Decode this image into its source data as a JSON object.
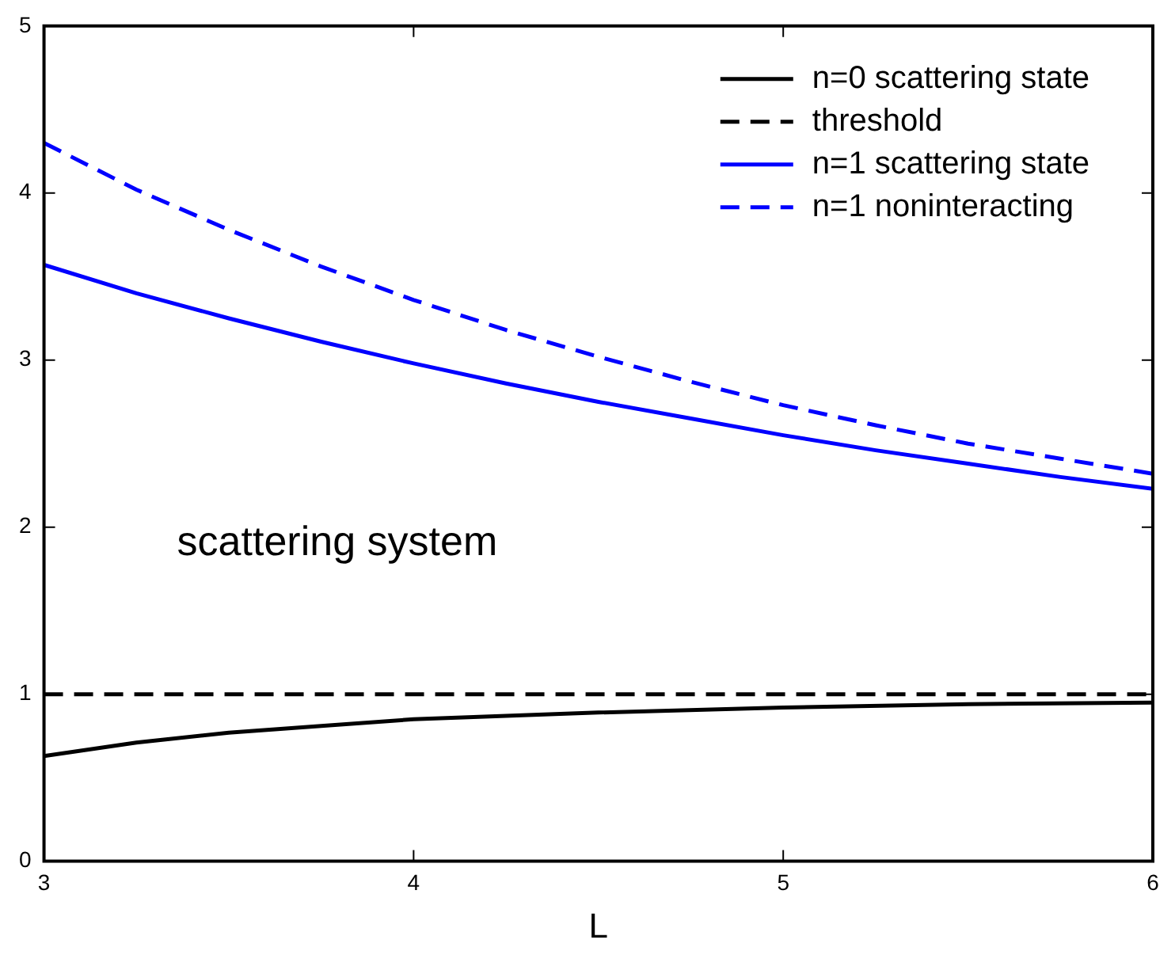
{
  "chart_data": {
    "type": "line",
    "xlabel": "L",
    "xlim": [
      3,
      6
    ],
    "xticks": [
      3,
      4,
      5,
      6
    ],
    "ylim": [
      0,
      5
    ],
    "yticks": [
      0,
      1,
      2,
      3,
      4,
      5
    ],
    "grid": false,
    "legend": "top right",
    "marker": "none",
    "annotations": [
      "scattering system"
    ],
    "series": [
      {
        "name": "n=0 scattering state",
        "color": "#000000",
        "line_style": "solid",
        "x": [
          3,
          3.25,
          3.5,
          3.75,
          4,
          4.5,
          5,
          5.5,
          6
        ],
        "values": [
          0.63,
          0.71,
          0.77,
          0.81,
          0.85,
          0.89,
          0.92,
          0.94,
          0.95
        ]
      },
      {
        "name": "threshold",
        "color": "#000000",
        "line_style": "dashed",
        "x": [
          3,
          6
        ],
        "values": [
          1,
          1
        ]
      },
      {
        "name": "n=1 scattering state",
        "color": "#0000ff",
        "line_style": "solid",
        "x": [
          3,
          3.25,
          3.5,
          3.75,
          4,
          4.25,
          4.5,
          4.75,
          5,
          5.25,
          5.5,
          5.75,
          6
        ],
        "values": [
          3.57,
          3.4,
          3.25,
          3.11,
          2.98,
          2.86,
          2.75,
          2.65,
          2.55,
          2.46,
          2.38,
          2.3,
          2.23
        ]
      },
      {
        "name": "n=1 noninteracting",
        "color": "#0000ff",
        "line_style": "dashed",
        "x": [
          3,
          3.25,
          3.5,
          3.75,
          4,
          4.25,
          4.5,
          4.75,
          5,
          5.25,
          5.5,
          5.75,
          6
        ],
        "values": [
          4.3,
          4.02,
          3.78,
          3.56,
          3.36,
          3.18,
          3.02,
          2.87,
          2.73,
          2.61,
          2.5,
          2.41,
          2.32
        ]
      }
    ]
  }
}
